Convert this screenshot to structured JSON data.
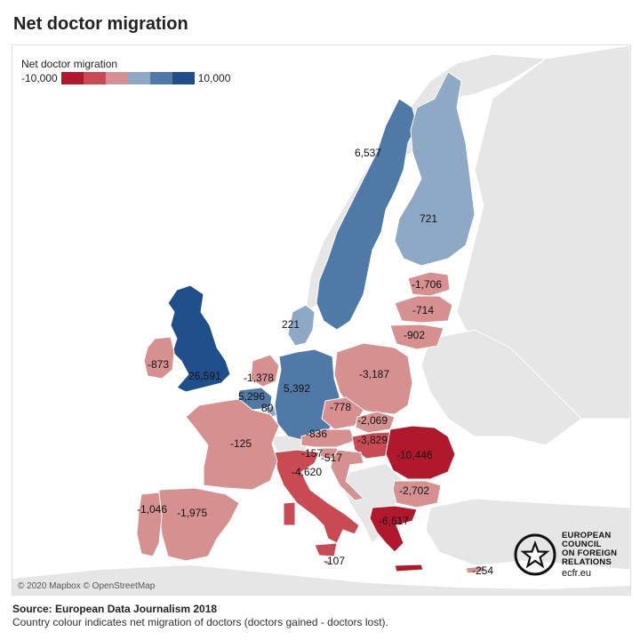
{
  "title": "Net doctor migration",
  "legend": {
    "title": "Net doctor migration",
    "min_label": "-10,000",
    "max_label": "10,000",
    "colors": [
      "#b2182b",
      "#c94a52",
      "#d6908f",
      "#8ea9c6",
      "#4f79a7",
      "#1f4f8a"
    ]
  },
  "attribution": "© 2020 Mapbox © OpenStreetMap",
  "logo": {
    "lines": [
      "EUROPEAN",
      "COUNCIL",
      "ON FOREIGN",
      "RELATIONS"
    ],
    "url": "ecfr.eu"
  },
  "footer": {
    "source": "Source: European Data Journalism 2018",
    "note": "Country colour indicates net migration of doctors (doctors gained - doctors lost)."
  },
  "colors": {
    "land_background": "#e6e6e6",
    "sea": "#ffffff"
  },
  "countries": [
    {
      "name": "United Kingdom",
      "value": 26591,
      "label": "26,591"
    },
    {
      "name": "Sweden",
      "value": 6537,
      "label": "6,537"
    },
    {
      "name": "Germany",
      "value": 5392,
      "label": "5,392"
    },
    {
      "name": "Belgium",
      "value": 5296,
      "label": "5,296"
    },
    {
      "name": "Finland",
      "value": 721,
      "label": "721"
    },
    {
      "name": "Denmark",
      "value": 221,
      "label": "221"
    },
    {
      "name": "Luxembourg",
      "value": 80,
      "label": "80"
    },
    {
      "name": "Ireland",
      "value": -873,
      "label": "-873"
    },
    {
      "name": "Netherlands",
      "value": -1378,
      "label": "-1,378"
    },
    {
      "name": "Estonia",
      "value": -1706,
      "label": "-1,706"
    },
    {
      "name": "Latvia",
      "value": -714,
      "label": "-714"
    },
    {
      "name": "Lithuania",
      "value": -902,
      "label": "-902"
    },
    {
      "name": "Poland",
      "value": -3187,
      "label": "-3,187"
    },
    {
      "name": "Czechia",
      "value": -778,
      "label": "-778"
    },
    {
      "name": "Slovakia",
      "value": -2069,
      "label": "-2,069"
    },
    {
      "name": "Austria",
      "value": -836,
      "label": "-836"
    },
    {
      "name": "Hungary",
      "value": -3829,
      "label": "-3,829"
    },
    {
      "name": "Slovenia",
      "value": -157,
      "label": "-157"
    },
    {
      "name": "Croatia",
      "value": -517,
      "label": "-517"
    },
    {
      "name": "Romania",
      "value": -10446,
      "label": "-10,446"
    },
    {
      "name": "Bulgaria",
      "value": -2702,
      "label": "-2,702"
    },
    {
      "name": "Greece",
      "value": -6617,
      "label": "-6,617"
    },
    {
      "name": "Italy",
      "value": -4620,
      "label": "-4,620"
    },
    {
      "name": "France",
      "value": -125,
      "label": "-125"
    },
    {
      "name": "Spain",
      "value": -1975,
      "label": "-1,975"
    },
    {
      "name": "Portugal",
      "value": -1046,
      "label": "-1,046"
    },
    {
      "name": "Malta",
      "value": -107,
      "label": "-107"
    },
    {
      "name": "Cyprus",
      "value": -254,
      "label": "-254"
    }
  ]
}
